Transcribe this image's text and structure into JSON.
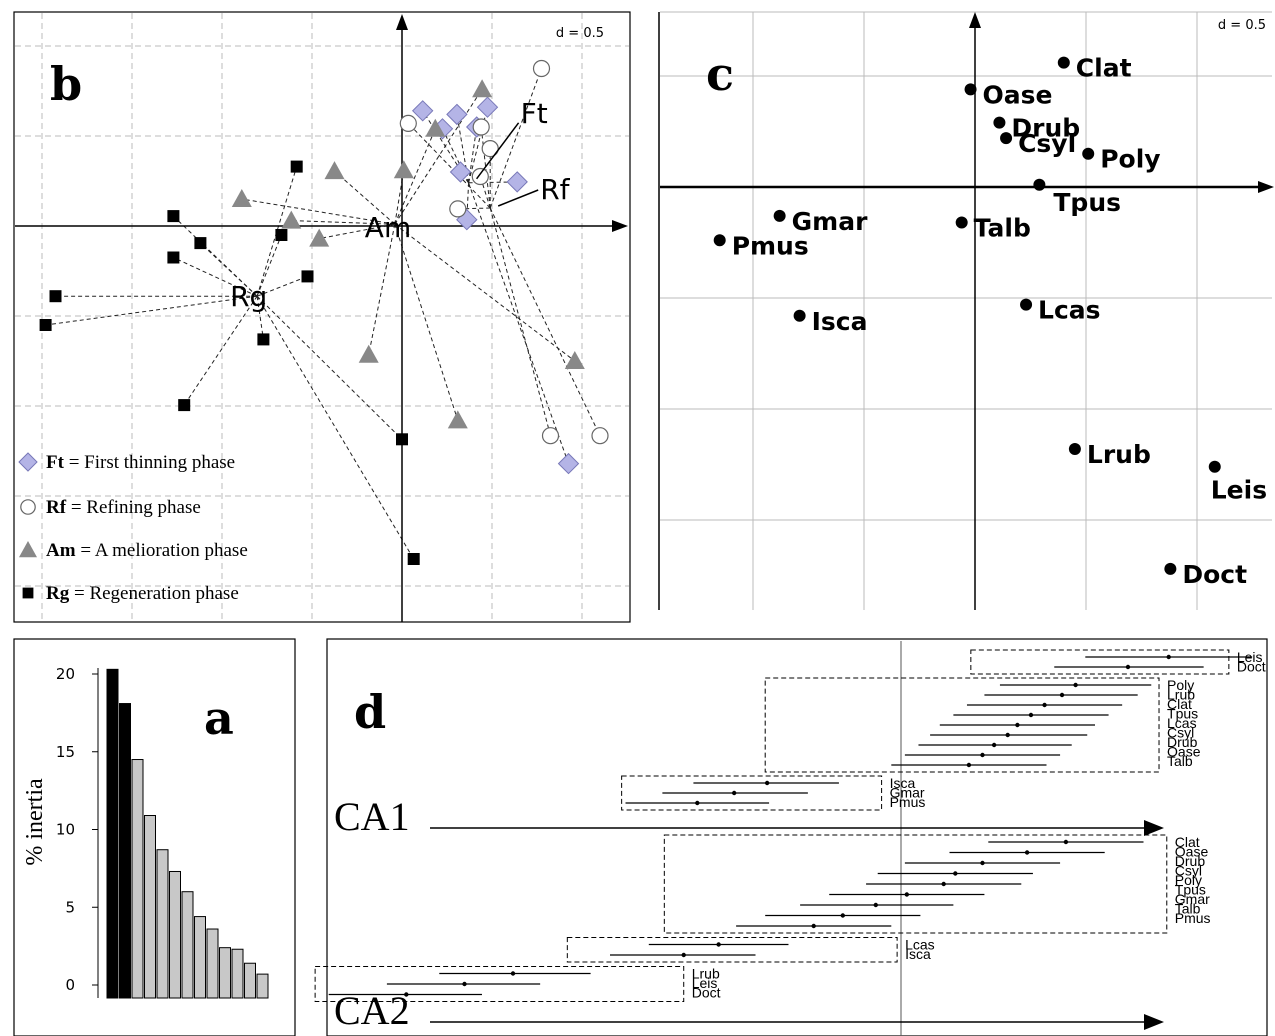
{
  "chart_data": [
    {
      "panel": "b",
      "type": "scatter",
      "scale_label": "d = 0.5",
      "groups": [
        {
          "code": "Ft",
          "name": "First thinning  phase",
          "marker": "diamond",
          "color": "#b4b4e6",
          "centroid": [
            0.74,
            0.48
          ],
          "points": [
            [
              0.23,
              1.28
            ],
            [
              0.61,
              1.24
            ],
            [
              0.95,
              1.32
            ],
            [
              0.45,
              1.08
            ],
            [
              0.83,
              1.1
            ],
            [
              0.65,
              0.6
            ],
            [
              1.28,
              0.49
            ],
            [
              0.72,
              0.07
            ],
            [
              1.85,
              -2.64
            ]
          ]
        },
        {
          "code": "Rf",
          "name": "Refining phase",
          "marker": "circle",
          "color": "#ffffff",
          "centroid": [
            0.98,
            0.2
          ],
          "points": [
            [
              1.55,
              1.75
            ],
            [
              0.07,
              1.14
            ],
            [
              0.88,
              1.1
            ],
            [
              0.98,
              0.86
            ],
            [
              0.87,
              0.55
            ],
            [
              0.62,
              0.19
            ],
            [
              1.65,
              -2.33
            ],
            [
              2.2,
              -2.33
            ]
          ]
        },
        {
          "code": "Am",
          "name": "A melioration phase",
          "marker": "triangle",
          "color": "#888888",
          "centroid": [
            -0.08,
            0.02
          ],
          "points": [
            [
              0.89,
              1.52
            ],
            [
              0.37,
              1.08
            ],
            [
              -0.75,
              0.61
            ],
            [
              0.02,
              0.62
            ],
            [
              -1.78,
              0.3
            ],
            [
              -1.23,
              0.06
            ],
            [
              -0.92,
              -0.14
            ],
            [
              -0.37,
              -1.43
            ],
            [
              0.62,
              -2.16
            ],
            [
              1.92,
              -1.5
            ]
          ]
        },
        {
          "code": "Rg",
          "name": "Regeneration phase",
          "marker": "square",
          "color": "#000000",
          "centroid": [
            -1.61,
            -0.78
          ],
          "points": [
            [
              -1.17,
              0.66
            ],
            [
              -2.54,
              0.11
            ],
            [
              -2.24,
              -0.19
            ],
            [
              -2.54,
              -0.35
            ],
            [
              -1.34,
              -0.1
            ],
            [
              -1.05,
              -0.56
            ],
            [
              -3.85,
              -0.78
            ],
            [
              -3.96,
              -1.1
            ],
            [
              -1.54,
              -1.26
            ],
            [
              -2.42,
              -1.99
            ],
            [
              0.0,
              -2.37
            ],
            [
              0.13,
              -3.7
            ]
          ]
        }
      ]
    },
    {
      "panel": "c",
      "type": "scatter",
      "scale_label": "d = 0.5",
      "points": [
        {
          "label": "Clat",
          "x": 0.4,
          "y": 0.56
        },
        {
          "label": "Oase",
          "x": -0.02,
          "y": 0.44
        },
        {
          "label": "Drub",
          "x": 0.11,
          "y": 0.29
        },
        {
          "label": "Csyl",
          "x": 0.14,
          "y": 0.22
        },
        {
          "label": "Poly",
          "x": 0.51,
          "y": 0.15
        },
        {
          "label": "Tpus",
          "x": 0.29,
          "y": 0.01
        },
        {
          "label": "Gmar",
          "x": -0.88,
          "y": -0.13
        },
        {
          "label": "Talb",
          "x": -0.06,
          "y": -0.16
        },
        {
          "label": "Pmus",
          "x": -1.15,
          "y": -0.24
        },
        {
          "label": "Isca",
          "x": -0.79,
          "y": -0.58
        },
        {
          "label": "Lcas",
          "x": 0.23,
          "y": -0.53
        },
        {
          "label": "Lrub",
          "x": 0.45,
          "y": -1.18
        },
        {
          "label": "Leis",
          "x": 1.08,
          "y": -1.26
        },
        {
          "label": "Doct",
          "x": 0.88,
          "y": -1.72
        }
      ]
    },
    {
      "panel": "a",
      "type": "bar",
      "ylabel": "% inertia",
      "yticks": [
        0,
        5,
        10,
        15,
        20
      ],
      "ylim": [
        -0.5,
        20.5
      ],
      "values": [
        20.3,
        18.1,
        14.5,
        10.9,
        8.7,
        7.3,
        6.0,
        4.4,
        3.6,
        2.4,
        2.3,
        1.4,
        0.7
      ],
      "highlighted_count": 2
    },
    {
      "panel": "d",
      "type": "interval",
      "axes": [
        {
          "name": "CA1",
          "species": [
            {
              "label": "Leis",
              "mean": 1.38,
              "low": 0.95,
              "high": 1.81
            },
            {
              "label": "Doct",
              "mean": 1.17,
              "low": 0.79,
              "high": 1.56
            },
            {
              "label": "Poly",
              "mean": 0.9,
              "low": 0.51,
              "high": 1.29
            },
            {
              "label": "Lrub",
              "mean": 0.83,
              "low": 0.43,
              "high": 1.22
            },
            {
              "label": "Clat",
              "mean": 0.74,
              "low": 0.34,
              "high": 1.14
            },
            {
              "label": "Tpus",
              "mean": 0.67,
              "low": 0.27,
              "high": 1.07
            },
            {
              "label": "Lcas",
              "mean": 0.6,
              "low": 0.2,
              "high": 1.0
            },
            {
              "label": "Csyl",
              "mean": 0.55,
              "low": 0.15,
              "high": 0.96
            },
            {
              "label": "Drub",
              "mean": 0.48,
              "low": 0.09,
              "high": 0.88
            },
            {
              "label": "Oase",
              "mean": 0.42,
              "low": 0.02,
              "high": 0.82
            },
            {
              "label": "Talb",
              "mean": 0.35,
              "low": -0.05,
              "high": 0.75
            },
            {
              "label": "Isca",
              "mean": -0.69,
              "low": -1.07,
              "high": -0.32
            },
            {
              "label": "Gmar",
              "mean": -0.86,
              "low": -1.23,
              "high": -0.48
            },
            {
              "label": "Pmus",
              "mean": -1.05,
              "low": -1.42,
              "high": -0.68
            }
          ],
          "groups": [
            {
              "range": [
                0.36,
                1.69
              ],
              "members": [
                "Leis",
                "Doct"
              ]
            },
            {
              "range": [
                -0.7,
                1.33
              ],
              "members": [
                "Poly",
                "Lrub",
                "Clat",
                "Tpus",
                "Lcas",
                "Csyl",
                "Drub",
                "Oase",
                "Talb"
              ]
            },
            {
              "range": [
                -1.44,
                -0.1
              ],
              "members": [
                "Isca",
                "Gmar",
                "Pmus"
              ]
            }
          ]
        },
        {
          "name": "CA2",
          "species": [
            {
              "label": "Clat",
              "mean": 0.85,
              "low": 0.45,
              "high": 1.25
            },
            {
              "label": "Oase",
              "mean": 0.65,
              "low": 0.25,
              "high": 1.05
            },
            {
              "label": "Drub",
              "mean": 0.42,
              "low": 0.02,
              "high": 0.82
            },
            {
              "label": "Csyl",
              "mean": 0.28,
              "low": -0.12,
              "high": 0.68
            },
            {
              "label": "Poly",
              "mean": 0.22,
              "low": -0.18,
              "high": 0.62
            },
            {
              "label": "Tpus",
              "mean": 0.03,
              "low": -0.37,
              "high": 0.43
            },
            {
              "label": "Gmar",
              "mean": -0.13,
              "low": -0.52,
              "high": 0.27
            },
            {
              "label": "Talb",
              "mean": -0.3,
              "low": -0.7,
              "high": 0.1
            },
            {
              "label": "Pmus",
              "mean": -0.45,
              "low": -0.85,
              "high": -0.05
            },
            {
              "label": "Lcas",
              "mean": -0.94,
              "low": -1.3,
              "high": -0.58
            },
            {
              "label": "Isca",
              "mean": -1.12,
              "low": -1.5,
              "high": -0.75
            },
            {
              "label": "Lrub",
              "mean": -2.0,
              "low": -2.38,
              "high": -1.6
            },
            {
              "label": "Leis",
              "mean": -2.25,
              "low": -2.65,
              "high": -1.86
            },
            {
              "label": "Doct",
              "mean": -2.55,
              "low": -2.95,
              "high": -2.16
            }
          ],
          "groups": [
            {
              "range": [
                -1.22,
                1.37
              ],
              "members": [
                "Clat",
                "Oase",
                "Drub",
                "Csyl",
                "Poly",
                "Tpus",
                "Gmar",
                "Talb",
                "Pmus"
              ]
            },
            {
              "range": [
                -1.72,
                -0.02
              ],
              "members": [
                "Lcas",
                "Isca"
              ]
            },
            {
              "range": [
                -3.02,
                -1.12
              ],
              "members": [
                "Lrub",
                "Leis",
                "Doct"
              ]
            }
          ]
        }
      ]
    }
  ],
  "panels": {
    "a": "a",
    "b": "b",
    "c": "c",
    "d": "d"
  }
}
